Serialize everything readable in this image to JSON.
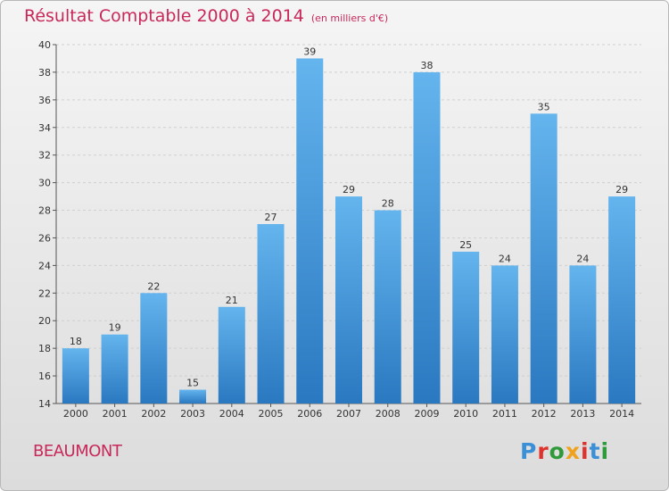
{
  "header": {
    "title": "Résultat Comptable 2000 à 2014",
    "unit": "(en milliers d'€)"
  },
  "footer": {
    "commune": "BEAUMONT",
    "brand": "Proxiti"
  },
  "colors": {
    "title": "#c8285a",
    "bar_top": "#64b4ee",
    "bar_bottom": "#2a78c0",
    "brand": [
      "#3a8fd6",
      "#e0322c",
      "#2f9a3a",
      "#f0a21e",
      "#e0322c",
      "#3a8fd6",
      "#2f9a3a"
    ]
  },
  "chart_data": {
    "type": "bar",
    "categories": [
      "2000",
      "2001",
      "2002",
      "2003",
      "2004",
      "2005",
      "2006",
      "2007",
      "2008",
      "2009",
      "2010",
      "2011",
      "2012",
      "2013",
      "2014"
    ],
    "values": [
      18,
      19,
      22,
      15,
      21,
      27,
      39,
      29,
      28,
      38,
      25,
      24,
      35,
      24,
      29
    ],
    "title": "Résultat Comptable 2000 à 2014",
    "subtitle": "(en milliers d'€)",
    "ylim": [
      14,
      40
    ],
    "yticks": [
      14,
      16,
      18,
      20,
      22,
      24,
      26,
      28,
      30,
      32,
      34,
      36,
      38,
      40
    ],
    "grid": true,
    "legend": "none"
  }
}
